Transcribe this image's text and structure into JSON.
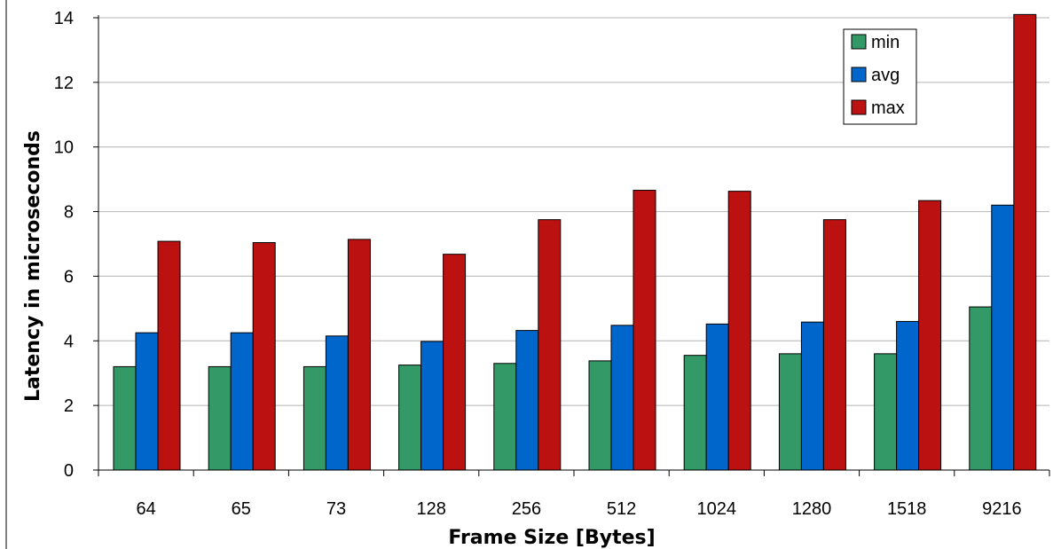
{
  "chart_data": {
    "type": "bar",
    "title": "",
    "xlabel": "Frame Size [Bytes]",
    "ylabel": "Latency in microseconds",
    "categories": [
      "64",
      "65",
      "73",
      "128",
      "256",
      "512",
      "1024",
      "1280",
      "1518",
      "9216"
    ],
    "series": [
      {
        "name": "min",
        "color": "#339966",
        "values": [
          3.2,
          3.2,
          3.2,
          3.25,
          3.3,
          3.38,
          3.55,
          3.6,
          3.6,
          5.05
        ]
      },
      {
        "name": "avg",
        "color": "#0066cc",
        "values": [
          4.25,
          4.25,
          4.15,
          3.98,
          4.32,
          4.48,
          4.52,
          4.58,
          4.6,
          8.2
        ]
      },
      {
        "name": "max",
        "color": "#bb1111",
        "values": [
          7.08,
          7.04,
          7.14,
          6.68,
          7.75,
          8.66,
          8.63,
          7.75,
          8.34,
          14.1
        ]
      }
    ],
    "ylim": [
      0,
      14
    ],
    "yticks": [
      0,
      2,
      4,
      6,
      8,
      10,
      12,
      14
    ],
    "grid": true,
    "legend": "top-right"
  }
}
